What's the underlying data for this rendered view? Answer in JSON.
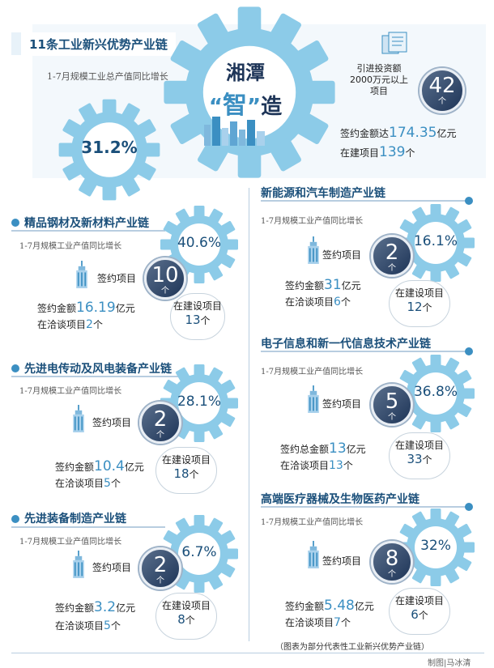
{
  "header": {
    "title": "11条工业新兴优势产业链",
    "growth_label": "1-7月规模工业总产值同比增长",
    "growth_value": "31.2%",
    "center_line1": "湘潭",
    "center_quote_open": "“",
    "center_char": "智",
    "center_quote_close": "”",
    "center_last": "造",
    "invest_label": "引进投资额2000万元以上项目",
    "invest_num": "42",
    "invest_unit": "个",
    "sign_prefix": "签约金额达",
    "sign_value": "174.35",
    "sign_unit": "亿元",
    "build_prefix": "在建项目",
    "build_value": "139",
    "build_unit": "个"
  },
  "common": {
    "growth_label": "1-7月规模工业产值同比增长",
    "sign_project_label": "签约项目",
    "unit_ge": "个",
    "in_build_label": "在建设项目",
    "sign_amount_prefix": "签约金额",
    "sign_total_prefix": "签约总金额",
    "yi_yuan": "亿元",
    "negotiating_prefix": "在洽谈项目"
  },
  "chains": [
    {
      "title": "精品钢材及新材料产业链",
      "pct": "40.6%",
      "projects": "10",
      "amount": "16.19",
      "negotiating": "2",
      "building": "13"
    },
    {
      "title": "先进电传动及风电装备产业链",
      "pct": "28.1%",
      "projects": "2",
      "amount": "10.4",
      "negotiating": "5",
      "building": "18"
    },
    {
      "title": "先进装备制造产业链",
      "pct": "6.7%",
      "projects": "2",
      "amount": "3.2",
      "negotiating": "5",
      "building": "8"
    },
    {
      "title": "新能源和汽车制造产业链",
      "pct": "16.1%",
      "projects": "2",
      "amount": "31",
      "negotiating": "6",
      "building": "12"
    },
    {
      "title": "电子信息和新一代信息技术产业链",
      "pct": "36.8%",
      "projects": "5",
      "amount": "13",
      "negotiating": "13",
      "building": "33"
    },
    {
      "title": "高端医疗器械及生物医药产业链",
      "pct": "32%",
      "projects": "8",
      "amount": "5.48",
      "negotiating": "7",
      "building": "6"
    }
  ],
  "footer": {
    "note": "（图表为部分代表性工业新兴优势产业链）",
    "credit": "制图|马冰清"
  },
  "colors": {
    "gear": "#8ccbe8",
    "accent": "#3b8fc2",
    "dark": "#1e3558"
  },
  "icons": [
    "gear-icon",
    "building-icon",
    "document-icon"
  ]
}
